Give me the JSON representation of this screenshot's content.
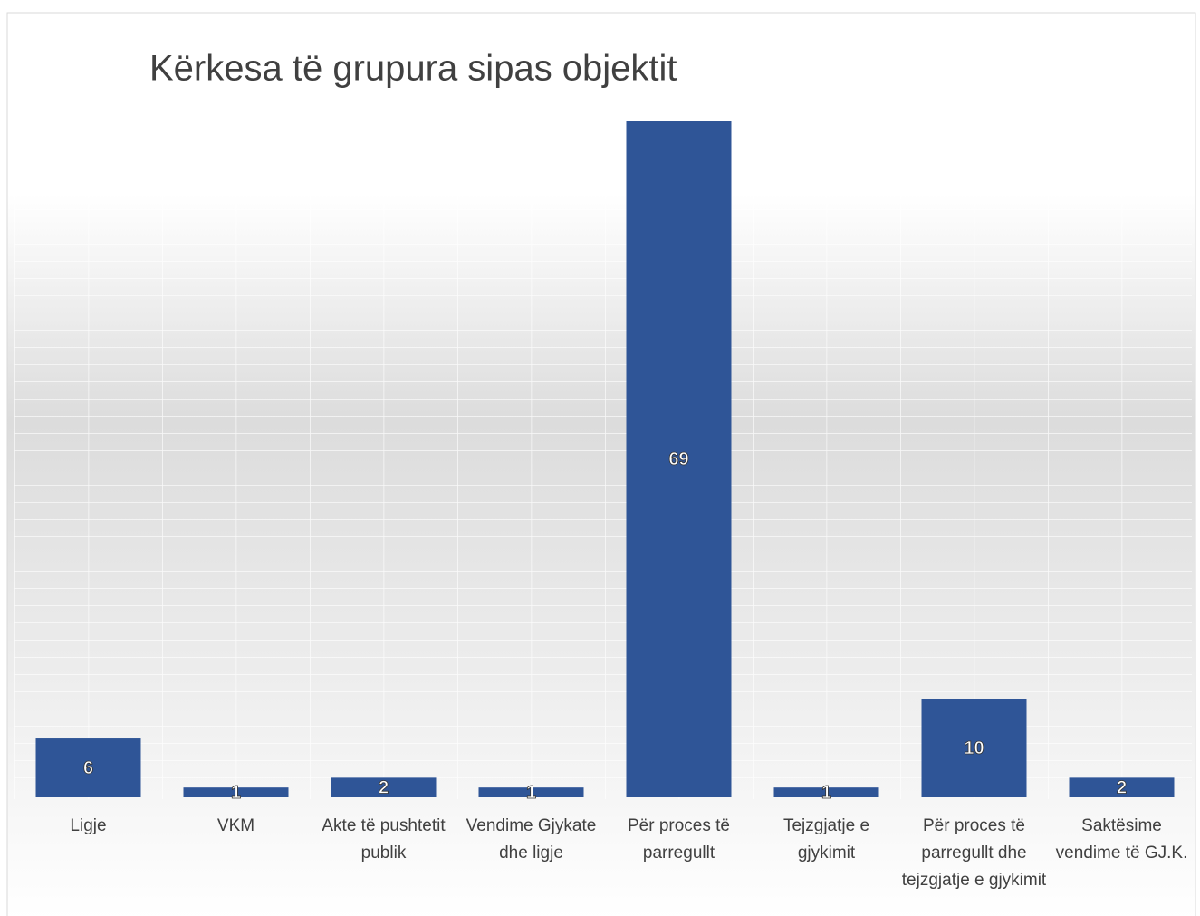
{
  "chart_data": {
    "type": "bar",
    "title": "Kërkesa të grupura sipas objektit",
    "categories": [
      "Ligje",
      "VKM",
      "Akte të pushtetit publik",
      "Vendime Gjykate dhe ligje",
      "Për proces të parregullt",
      "Tejzgjatje e gjykimit",
      "Për proces të parregullt dhe tejzgjatje e gjykimit",
      "Saktësime vendime të GJ.K."
    ],
    "values": [
      6,
      1,
      2,
      1,
      69,
      1,
      10,
      2
    ],
    "color": "#2f5597"
  }
}
